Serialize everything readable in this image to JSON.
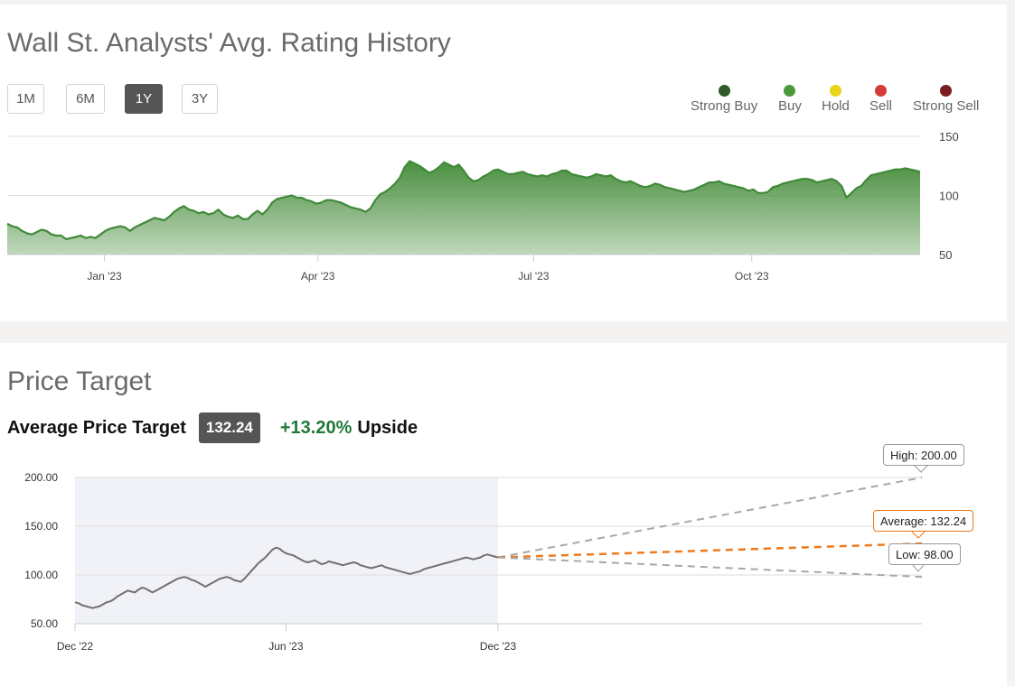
{
  "rating_history": {
    "title": "Wall St. Analysts' Avg. Rating History",
    "range_buttons": [
      {
        "label": "1M",
        "active": false
      },
      {
        "label": "6M",
        "active": false
      },
      {
        "label": "1Y",
        "active": true
      },
      {
        "label": "3Y",
        "active": false
      }
    ],
    "legend": [
      {
        "label": "Strong Buy",
        "color": "#2d5a27"
      },
      {
        "label": "Buy",
        "color": "#4a9a3c"
      },
      {
        "label": "Hold",
        "color": "#e8d51a"
      },
      {
        "label": "Sell",
        "color": "#d63b3b"
      },
      {
        "label": "Strong Sell",
        "color": "#7a1c1c"
      }
    ]
  },
  "price_target": {
    "title": "Price Target",
    "average_label": "Average Price Target",
    "average_value": "132.24",
    "upside_pct": "+13.20%",
    "upside_label": "Upside",
    "callouts": {
      "high": "High: 200.00",
      "average": "Average: 132.24",
      "low": "Low: 98.00"
    }
  },
  "chart_data": [
    {
      "type": "area",
      "name": "rating-history",
      "x_start": "2022-11-21",
      "x_end": "2023-12-11",
      "x_ticks": [
        {
          "label": "Jan '23",
          "date": "2023-01-01"
        },
        {
          "label": "Apr '23",
          "date": "2023-04-01"
        },
        {
          "label": "Jul '23",
          "date": "2023-07-01"
        },
        {
          "label": "Oct '23",
          "date": "2023-10-01"
        }
      ],
      "y_ticks": [
        150,
        100,
        50
      ],
      "ylim": [
        50,
        150
      ],
      "grid": true,
      "color": "#4a8f3f",
      "y": [
        76,
        74,
        73,
        70,
        68,
        67,
        69,
        71,
        70,
        67,
        66,
        66,
        63,
        64,
        65,
        66,
        64,
        65,
        64,
        67,
        70,
        72,
        73,
        74,
        73,
        70,
        73,
        75,
        77,
        79,
        81,
        80,
        79,
        82,
        86,
        89,
        91,
        88,
        87,
        85,
        86,
        84,
        85,
        88,
        84,
        82,
        81,
        83,
        80,
        80,
        84,
        87,
        84,
        88,
        94,
        97,
        98,
        99,
        100,
        98,
        98,
        96,
        95,
        93,
        94,
        96,
        96,
        95,
        94,
        92,
        90,
        89,
        88,
        86,
        89,
        96,
        101,
        103,
        106,
        110,
        115,
        124,
        129,
        127,
        125,
        122,
        119,
        121,
        124,
        128,
        126,
        124,
        126,
        121,
        115,
        112,
        113,
        116,
        118,
        121,
        122,
        120,
        118,
        118,
        119,
        120,
        118,
        117,
        116,
        117,
        116,
        118,
        119,
        121,
        121,
        118,
        117,
        116,
        115,
        116,
        118,
        117,
        116,
        117,
        114,
        112,
        111,
        112,
        110,
        108,
        107,
        108,
        110,
        109,
        107,
        106,
        105,
        104,
        103,
        104,
        105,
        107,
        109,
        111,
        111,
        112,
        110,
        109,
        108,
        107,
        106,
        104,
        105,
        102,
        102,
        103,
        107,
        108,
        110,
        111,
        112,
        113,
        114,
        114,
        113,
        111,
        112,
        113,
        114,
        112,
        108,
        98,
        102,
        106,
        108,
        113,
        117,
        118,
        119,
        120,
        121,
        122,
        122,
        123,
        122,
        121,
        120
      ]
    },
    {
      "type": "line",
      "name": "price-target",
      "x_ticks": [
        {
          "label": "Dec '22",
          "date": "2022-12-01"
        },
        {
          "label": "Jun '23",
          "date": "2023-06-01"
        },
        {
          "label": "Dec '23",
          "date": "2023-12-01"
        }
      ],
      "y_ticks": [
        200,
        150,
        100,
        50
      ],
      "y_tick_labels": [
        "200.00",
        "150.00",
        "100.00",
        "50.00"
      ],
      "ylim": [
        50,
        200
      ],
      "grid": true,
      "history_color": "#707070",
      "history_start": "2022-12-01",
      "history_end": "2023-12-01",
      "forecast_end": "2024-12-01",
      "history": [
        72,
        71,
        69,
        68,
        67,
        66,
        67,
        68,
        70,
        72,
        73,
        75,
        78,
        80,
        82,
        84,
        83,
        82,
        85,
        87,
        86,
        84,
        82,
        84,
        86,
        88,
        90,
        92,
        94,
        96,
        97,
        98,
        97,
        95,
        94,
        92,
        90,
        88,
        90,
        92,
        94,
        96,
        97,
        98,
        97,
        95,
        94,
        93,
        96,
        100,
        104,
        108,
        112,
        115,
        118,
        122,
        126,
        128,
        127,
        124,
        122,
        121,
        120,
        118,
        116,
        114,
        113,
        114,
        115,
        113,
        111,
        112,
        114,
        113,
        112,
        111,
        110,
        111,
        112,
        113,
        112,
        110,
        109,
        108,
        107,
        108,
        109,
        110,
        108,
        107,
        106,
        105,
        104,
        103,
        102,
        101,
        102,
        103,
        104,
        106,
        107,
        108,
        109,
        110,
        111,
        112,
        113,
        114,
        115,
        116,
        117,
        118,
        117,
        116,
        117,
        118,
        120,
        121,
        120,
        119,
        118
      ],
      "projections": [
        {
          "label": "High",
          "value": 200,
          "color": "#a8a8a8"
        },
        {
          "label": "Average",
          "value": 132.24,
          "color": "#ee7a1c"
        },
        {
          "label": "Low",
          "value": 98,
          "color": "#a8a8a8"
        }
      ]
    }
  ]
}
